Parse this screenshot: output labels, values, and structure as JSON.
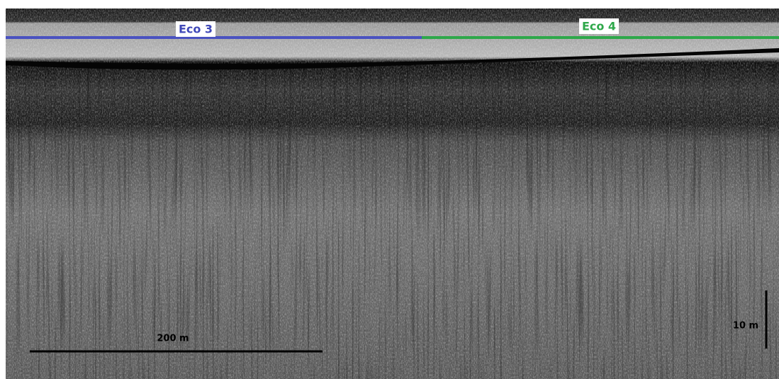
{
  "sections": [
    {
      "label": "Eco 3"
    },
    {
      "label": "Eco 4"
    }
  ],
  "scale_bars": {
    "horizontal": "200 m",
    "vertical": "10 m"
  }
}
